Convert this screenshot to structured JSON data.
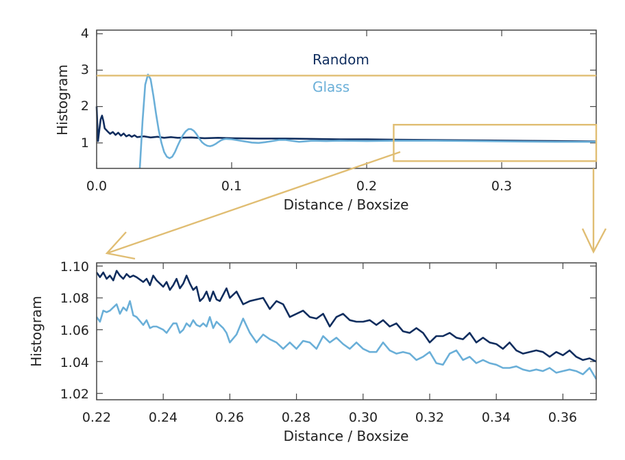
{
  "colors": {
    "random": "#0f2d5e",
    "glass": "#6aafd8",
    "annotation": "#e0bd72",
    "axes": "#444444"
  },
  "chart_data": [
    {
      "id": "top",
      "type": "line",
      "title": "",
      "xlabel": "Distance / Boxsize",
      "ylabel": "Histogram",
      "xlim": [
        0.0,
        0.37
      ],
      "ylim": [
        0.3,
        4.1
      ],
      "xticks": [
        0.0,
        0.1,
        0.2,
        0.3
      ],
      "xtick_labels": [
        "0.0",
        "0.1",
        "0.2",
        "0.3"
      ],
      "yticks": [
        1,
        2,
        3,
        4
      ],
      "ytick_labels": [
        "1",
        "2",
        "3",
        "4"
      ],
      "legend": [
        "Random",
        "Glass"
      ],
      "annotations": {
        "reference_line_y": 2.85,
        "zoom_box": {
          "x": [
            0.22,
            0.37
          ],
          "y": [
            0.5,
            1.5
          ]
        }
      },
      "series": [
        {
          "name": "Random",
          "x": [
            0.0,
            0.001,
            0.002,
            0.003,
            0.004,
            0.005,
            0.006,
            0.008,
            0.01,
            0.012,
            0.014,
            0.016,
            0.018,
            0.02,
            0.022,
            0.024,
            0.026,
            0.028,
            0.03,
            0.035,
            0.04,
            0.045,
            0.05,
            0.055,
            0.06,
            0.07,
            0.08,
            0.09,
            0.1,
            0.12,
            0.14,
            0.16,
            0.18,
            0.2,
            0.22,
            0.25,
            0.28,
            0.31,
            0.34,
            0.37
          ],
          "values": [
            2.0,
            1.05,
            1.35,
            1.65,
            1.75,
            1.6,
            1.4,
            1.32,
            1.25,
            1.3,
            1.22,
            1.28,
            1.2,
            1.26,
            1.18,
            1.22,
            1.17,
            1.21,
            1.16,
            1.18,
            1.15,
            1.17,
            1.14,
            1.16,
            1.14,
            1.15,
            1.13,
            1.14,
            1.13,
            1.12,
            1.12,
            1.11,
            1.1,
            1.1,
            1.09,
            1.08,
            1.07,
            1.06,
            1.05,
            1.04
          ]
        },
        {
          "name": "Glass",
          "x": [
            0.032,
            0.034,
            0.036,
            0.038,
            0.04,
            0.042,
            0.044,
            0.046,
            0.048,
            0.05,
            0.052,
            0.054,
            0.056,
            0.058,
            0.06,
            0.062,
            0.064,
            0.066,
            0.068,
            0.07,
            0.072,
            0.074,
            0.076,
            0.078,
            0.08,
            0.082,
            0.084,
            0.086,
            0.088,
            0.09,
            0.092,
            0.094,
            0.096,
            0.1,
            0.105,
            0.11,
            0.115,
            0.12,
            0.125,
            0.13,
            0.135,
            0.14,
            0.15,
            0.16,
            0.17,
            0.18,
            0.2,
            0.22,
            0.25,
            0.28,
            0.31,
            0.34,
            0.37
          ],
          "values": [
            0.3,
            1.6,
            2.6,
            2.88,
            2.75,
            2.3,
            1.8,
            1.35,
            1.0,
            0.75,
            0.62,
            0.58,
            0.62,
            0.75,
            0.92,
            1.08,
            1.22,
            1.32,
            1.38,
            1.38,
            1.33,
            1.24,
            1.12,
            1.02,
            0.96,
            0.92,
            0.91,
            0.93,
            0.97,
            1.02,
            1.07,
            1.1,
            1.11,
            1.1,
            1.07,
            1.04,
            1.01,
            1.0,
            1.02,
            1.05,
            1.08,
            1.08,
            1.03,
            1.06,
            1.05,
            1.06,
            1.05,
            1.06,
            1.06,
            1.05,
            1.04,
            1.03,
            1.03
          ]
        }
      ]
    },
    {
      "id": "bottom",
      "type": "line",
      "title": "",
      "xlabel": "Distance / Boxsize",
      "ylabel": "Histogram",
      "xlim": [
        0.22,
        0.37
      ],
      "ylim": [
        1.016,
        1.102
      ],
      "xticks": [
        0.22,
        0.24,
        0.26,
        0.28,
        0.3,
        0.32,
        0.34,
        0.36
      ],
      "xtick_labels": [
        "0.22",
        "0.24",
        "0.26",
        "0.28",
        "0.30",
        "0.32",
        "0.34",
        "0.36"
      ],
      "yticks": [
        1.02,
        1.04,
        1.06,
        1.08,
        1.1
      ],
      "ytick_labels": [
        "1.02",
        "1.04",
        "1.06",
        "1.08",
        "1.10"
      ],
      "series": [
        {
          "name": "Random",
          "x": [
            0.22,
            0.221,
            0.222,
            0.223,
            0.224,
            0.225,
            0.226,
            0.227,
            0.228,
            0.229,
            0.23,
            0.231,
            0.232,
            0.234,
            0.235,
            0.236,
            0.237,
            0.238,
            0.239,
            0.24,
            0.241,
            0.242,
            0.243,
            0.244,
            0.245,
            0.246,
            0.247,
            0.248,
            0.249,
            0.25,
            0.251,
            0.252,
            0.253,
            0.254,
            0.255,
            0.256,
            0.257,
            0.258,
            0.259,
            0.26,
            0.262,
            0.264,
            0.266,
            0.268,
            0.27,
            0.272,
            0.274,
            0.276,
            0.278,
            0.28,
            0.282,
            0.284,
            0.286,
            0.288,
            0.29,
            0.292,
            0.294,
            0.296,
            0.298,
            0.3,
            0.302,
            0.304,
            0.306,
            0.308,
            0.31,
            0.312,
            0.314,
            0.316,
            0.318,
            0.32,
            0.322,
            0.324,
            0.326,
            0.328,
            0.33,
            0.332,
            0.334,
            0.336,
            0.338,
            0.34,
            0.342,
            0.344,
            0.346,
            0.348,
            0.35,
            0.352,
            0.354,
            0.356,
            0.358,
            0.36,
            0.362,
            0.364,
            0.366,
            0.368,
            0.37
          ],
          "values": [
            1.096,
            1.093,
            1.096,
            1.092,
            1.094,
            1.091,
            1.097,
            1.094,
            1.092,
            1.095,
            1.093,
            1.094,
            1.093,
            1.09,
            1.092,
            1.088,
            1.094,
            1.091,
            1.089,
            1.087,
            1.09,
            1.085,
            1.088,
            1.092,
            1.086,
            1.089,
            1.094,
            1.089,
            1.085,
            1.087,
            1.078,
            1.08,
            1.084,
            1.078,
            1.084,
            1.079,
            1.078,
            1.082,
            1.086,
            1.08,
            1.084,
            1.076,
            1.078,
            1.079,
            1.08,
            1.073,
            1.078,
            1.076,
            1.068,
            1.07,
            1.072,
            1.068,
            1.067,
            1.07,
            1.062,
            1.068,
            1.07,
            1.066,
            1.065,
            1.065,
            1.066,
            1.063,
            1.066,
            1.062,
            1.064,
            1.059,
            1.058,
            1.061,
            1.058,
            1.052,
            1.056,
            1.056,
            1.058,
            1.055,
            1.054,
            1.058,
            1.052,
            1.055,
            1.052,
            1.051,
            1.048,
            1.052,
            1.047,
            1.045,
            1.046,
            1.047,
            1.046,
            1.043,
            1.046,
            1.044,
            1.047,
            1.043,
            1.041,
            1.042,
            1.04
          ]
        },
        {
          "name": "Glass",
          "x": [
            0.22,
            0.221,
            0.222,
            0.223,
            0.224,
            0.225,
            0.226,
            0.227,
            0.228,
            0.229,
            0.23,
            0.231,
            0.232,
            0.234,
            0.235,
            0.236,
            0.237,
            0.238,
            0.239,
            0.24,
            0.241,
            0.242,
            0.243,
            0.244,
            0.245,
            0.246,
            0.247,
            0.248,
            0.249,
            0.25,
            0.251,
            0.252,
            0.253,
            0.254,
            0.255,
            0.256,
            0.257,
            0.258,
            0.259,
            0.26,
            0.262,
            0.264,
            0.266,
            0.268,
            0.27,
            0.272,
            0.274,
            0.276,
            0.278,
            0.28,
            0.282,
            0.284,
            0.286,
            0.288,
            0.29,
            0.292,
            0.294,
            0.296,
            0.298,
            0.3,
            0.302,
            0.304,
            0.306,
            0.308,
            0.31,
            0.312,
            0.314,
            0.316,
            0.318,
            0.32,
            0.322,
            0.324,
            0.326,
            0.328,
            0.33,
            0.332,
            0.334,
            0.336,
            0.338,
            0.34,
            0.342,
            0.344,
            0.346,
            0.348,
            0.35,
            0.352,
            0.354,
            0.356,
            0.358,
            0.36,
            0.362,
            0.364,
            0.366,
            0.368,
            0.37
          ],
          "values": [
            1.068,
            1.065,
            1.072,
            1.071,
            1.072,
            1.074,
            1.076,
            1.07,
            1.074,
            1.072,
            1.078,
            1.069,
            1.068,
            1.063,
            1.066,
            1.061,
            1.062,
            1.062,
            1.061,
            1.06,
            1.058,
            1.061,
            1.064,
            1.064,
            1.058,
            1.06,
            1.064,
            1.062,
            1.066,
            1.063,
            1.062,
            1.064,
            1.062,
            1.068,
            1.061,
            1.065,
            1.063,
            1.061,
            1.058,
            1.052,
            1.057,
            1.067,
            1.058,
            1.052,
            1.057,
            1.054,
            1.052,
            1.048,
            1.052,
            1.048,
            1.053,
            1.052,
            1.048,
            1.056,
            1.052,
            1.055,
            1.051,
            1.048,
            1.052,
            1.048,
            1.046,
            1.046,
            1.052,
            1.047,
            1.045,
            1.046,
            1.045,
            1.041,
            1.043,
            1.046,
            1.039,
            1.038,
            1.045,
            1.047,
            1.041,
            1.043,
            1.039,
            1.041,
            1.039,
            1.038,
            1.036,
            1.036,
            1.037,
            1.035,
            1.034,
            1.035,
            1.034,
            1.036,
            1.033,
            1.034,
            1.035,
            1.034,
            1.032,
            1.036,
            1.029
          ]
        }
      ]
    }
  ]
}
